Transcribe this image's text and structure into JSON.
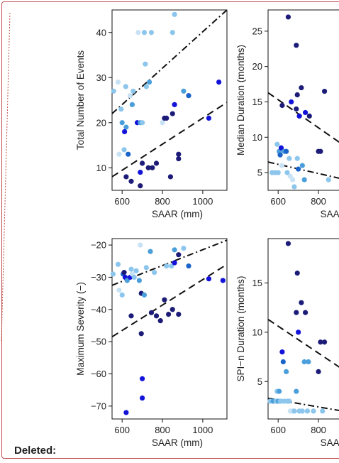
{
  "annotation": {
    "deleted_label": "Deleted:"
  },
  "colors": {
    "frame": "#c0504d",
    "dot_palette": [
      "#c8e2f5",
      "#8cc6ec",
      "#4a9fdb",
      "#1a63c9",
      "#1212d8",
      "#1c1c78"
    ]
  },
  "chart_data": [
    {
      "id": "total-events",
      "type": "scatter",
      "xlabel": "SAAR (mm)",
      "ylabel": "Total Number of Events",
      "xlim": [
        550,
        1120
      ],
      "ylim": [
        5,
        45
      ],
      "xticks": [
        600,
        800,
        1000
      ],
      "yticks": [
        10,
        20,
        30,
        40
      ],
      "grid": false,
      "legend": "none",
      "points": [
        {
          "x": 558,
          "y": 27,
          "c": 1
        },
        {
          "x": 580,
          "y": 29,
          "c": 0
        },
        {
          "x": 595,
          "y": 23,
          "c": 1
        },
        {
          "x": 585,
          "y": 13,
          "c": 0
        },
        {
          "x": 610,
          "y": 14,
          "c": 1
        },
        {
          "x": 600,
          "y": 20,
          "c": 2
        },
        {
          "x": 620,
          "y": 19,
          "c": 2
        },
        {
          "x": 612,
          "y": 18,
          "c": 4
        },
        {
          "x": 618,
          "y": 28,
          "c": 1
        },
        {
          "x": 640,
          "y": 26,
          "c": 0
        },
        {
          "x": 630,
          "y": 13,
          "c": 3
        },
        {
          "x": 620,
          "y": 8,
          "c": 5
        },
        {
          "x": 655,
          "y": 27,
          "c": 1
        },
        {
          "x": 650,
          "y": 24,
          "c": 2
        },
        {
          "x": 645,
          "y": 7,
          "c": 5
        },
        {
          "x": 680,
          "y": 40,
          "c": 0
        },
        {
          "x": 675,
          "y": 20,
          "c": 4
        },
        {
          "x": 690,
          "y": 20,
          "c": 2
        },
        {
          "x": 700,
          "y": 20,
          "c": 1
        },
        {
          "x": 690,
          "y": 9,
          "c": 4
        },
        {
          "x": 700,
          "y": 11,
          "c": 5
        },
        {
          "x": 690,
          "y": 6,
          "c": 5
        },
        {
          "x": 710,
          "y": 40,
          "c": 1
        },
        {
          "x": 715,
          "y": 33,
          "c": 1
        },
        {
          "x": 720,
          "y": 28,
          "c": 1
        },
        {
          "x": 735,
          "y": 29,
          "c": 2
        },
        {
          "x": 745,
          "y": 40,
          "c": 1
        },
        {
          "x": 730,
          "y": 10,
          "c": 5
        },
        {
          "x": 750,
          "y": 10,
          "c": 5
        },
        {
          "x": 770,
          "y": 11,
          "c": 5
        },
        {
          "x": 800,
          "y": 20,
          "c": 0
        },
        {
          "x": 810,
          "y": 21,
          "c": 5
        },
        {
          "x": 820,
          "y": 21,
          "c": 5
        },
        {
          "x": 850,
          "y": 40,
          "c": 1
        },
        {
          "x": 860,
          "y": 44,
          "c": 1
        },
        {
          "x": 850,
          "y": 22,
          "c": 5
        },
        {
          "x": 860,
          "y": 24,
          "c": 4
        },
        {
          "x": 840,
          "y": 8,
          "c": 5
        },
        {
          "x": 880,
          "y": 12,
          "c": 5
        },
        {
          "x": 880,
          "y": 13,
          "c": 5
        },
        {
          "x": 905,
          "y": 27,
          "c": 2
        },
        {
          "x": 930,
          "y": 26,
          "c": 3
        },
        {
          "x": 1030,
          "y": 21,
          "c": 4
        },
        {
          "x": 1080,
          "y": 29,
          "c": 4
        }
      ],
      "lines": [
        {
          "style": "dashdot",
          "x1": 550,
          "y1": 22,
          "x2": 1120,
          "y2": 45
        },
        {
          "style": "dash",
          "x1": 550,
          "y1": 8,
          "x2": 1120,
          "y2": 24.5
        }
      ]
    },
    {
      "id": "median-duration",
      "type": "scatter",
      "xlabel": "SAAR",
      "ylabel": "Median Duration (months)",
      "xlim": [
        550,
        1120
      ],
      "ylim": [
        2.5,
        28
      ],
      "xticks": [
        600,
        800
      ],
      "yticks": [
        5,
        10,
        15,
        20,
        25
      ],
      "grid": false,
      "legend": "none",
      "points": [
        {
          "x": 570,
          "y": 5,
          "c": 1
        },
        {
          "x": 585,
          "y": 5,
          "c": 1
        },
        {
          "x": 595,
          "y": 9,
          "c": 1
        },
        {
          "x": 600,
          "y": 5,
          "c": 1
        },
        {
          "x": 605,
          "y": 8,
          "c": 2
        },
        {
          "x": 610,
          "y": 7.5,
          "c": 3
        },
        {
          "x": 615,
          "y": 8.5,
          "c": 4
        },
        {
          "x": 618,
          "y": 6,
          "c": 0
        },
        {
          "x": 620,
          "y": 14.5,
          "c": 5
        },
        {
          "x": 630,
          "y": 8,
          "c": 2
        },
        {
          "x": 640,
          "y": 8,
          "c": 3
        },
        {
          "x": 645,
          "y": 5,
          "c": 1
        },
        {
          "x": 650,
          "y": 27,
          "c": 5
        },
        {
          "x": 655,
          "y": 7,
          "c": 1
        },
        {
          "x": 660,
          "y": 4.5,
          "c": 0
        },
        {
          "x": 665,
          "y": 15,
          "c": 4
        },
        {
          "x": 672,
          "y": 4,
          "c": 0
        },
        {
          "x": 680,
          "y": 3,
          "c": 1
        },
        {
          "x": 690,
          "y": 14,
          "c": 5
        },
        {
          "x": 690,
          "y": 23,
          "c": 5
        },
        {
          "x": 695,
          "y": 16,
          "c": 5
        },
        {
          "x": 695,
          "y": 7,
          "c": 1
        },
        {
          "x": 700,
          "y": 5.5,
          "c": 3
        },
        {
          "x": 705,
          "y": 13,
          "c": 4
        },
        {
          "x": 715,
          "y": 17,
          "c": 5
        },
        {
          "x": 720,
          "y": 6,
          "c": 2
        },
        {
          "x": 730,
          "y": 4,
          "c": 2
        },
        {
          "x": 735,
          "y": 13.5,
          "c": 4
        },
        {
          "x": 755,
          "y": 13,
          "c": 5
        },
        {
          "x": 800,
          "y": 8,
          "c": 5
        },
        {
          "x": 810,
          "y": 8,
          "c": 5
        },
        {
          "x": 830,
          "y": 16.5,
          "c": 5
        },
        {
          "x": 850,
          "y": 4,
          "c": 1
        }
      ],
      "lines": [
        {
          "style": "dash",
          "x1": 550,
          "y1": 16.3,
          "x2": 1120,
          "y2": 5
        },
        {
          "style": "dashdot",
          "x1": 550,
          "y1": 6.5,
          "x2": 1120,
          "y2": 2.8
        }
      ]
    },
    {
      "id": "max-severity",
      "type": "scatter",
      "xlabel": "SAAR (mm)",
      "ylabel": "Maximum Severity (−)",
      "xlim": [
        550,
        1120
      ],
      "ylim": [
        -74,
        -18
      ],
      "xticks": [
        600,
        800,
        1000
      ],
      "yticks": [
        -70,
        -60,
        -50,
        -40,
        -30,
        -20
      ],
      "ytick_labels": [
        "−70",
        "−60",
        "−50",
        "−40",
        "−30",
        "−20"
      ],
      "grid": false,
      "legend": "none",
      "points": [
        {
          "x": 555,
          "y": -29,
          "c": 1
        },
        {
          "x": 580,
          "y": -26,
          "c": 1
        },
        {
          "x": 585,
          "y": -34,
          "c": 0
        },
        {
          "x": 600,
          "y": -35.5,
          "c": 1
        },
        {
          "x": 605,
          "y": -29,
          "c": 3
        },
        {
          "x": 610,
          "y": -28.5,
          "c": 5
        },
        {
          "x": 615,
          "y": -30,
          "c": 4
        },
        {
          "x": 620,
          "y": -72,
          "c": 4
        },
        {
          "x": 625,
          "y": -31,
          "c": 2
        },
        {
          "x": 640,
          "y": -30,
          "c": 4
        },
        {
          "x": 645,
          "y": -27.5,
          "c": 1
        },
        {
          "x": 645,
          "y": -42,
          "c": 5
        },
        {
          "x": 650,
          "y": -29,
          "c": 0
        },
        {
          "x": 660,
          "y": -30,
          "c": 1
        },
        {
          "x": 670,
          "y": -28,
          "c": 1
        },
        {
          "x": 685,
          "y": -31,
          "c": 2
        },
        {
          "x": 690,
          "y": -20,
          "c": 0
        },
        {
          "x": 695,
          "y": -35,
          "c": 5
        },
        {
          "x": 695,
          "y": -47.5,
          "c": 5
        },
        {
          "x": 700,
          "y": -61.5,
          "c": 4
        },
        {
          "x": 700,
          "y": -67.5,
          "c": 4
        },
        {
          "x": 710,
          "y": -35.5,
          "c": 2
        },
        {
          "x": 720,
          "y": -27,
          "c": 1
        },
        {
          "x": 740,
          "y": -22,
          "c": 2
        },
        {
          "x": 745,
          "y": -41,
          "c": 5
        },
        {
          "x": 760,
          "y": -28.5,
          "c": 1
        },
        {
          "x": 770,
          "y": -42,
          "c": 5
        },
        {
          "x": 790,
          "y": -43.5,
          "c": 5
        },
        {
          "x": 810,
          "y": -37,
          "c": 5
        },
        {
          "x": 820,
          "y": -26.5,
          "c": 1
        },
        {
          "x": 830,
          "y": -41.5,
          "c": 5
        },
        {
          "x": 845,
          "y": -26.5,
          "c": 1
        },
        {
          "x": 850,
          "y": -40,
          "c": 5
        },
        {
          "x": 860,
          "y": -25.5,
          "c": 4
        },
        {
          "x": 860,
          "y": -21.5,
          "c": 2
        },
        {
          "x": 880,
          "y": -41.5,
          "c": 5
        },
        {
          "x": 880,
          "y": -23,
          "c": 5
        },
        {
          "x": 905,
          "y": -21,
          "c": 1
        },
        {
          "x": 930,
          "y": -26.5,
          "c": 3
        },
        {
          "x": 1030,
          "y": -30.5,
          "c": 4
        },
        {
          "x": 1100,
          "y": -31,
          "c": 4
        }
      ],
      "lines": [
        {
          "style": "dashdot",
          "x1": 550,
          "y1": -32.5,
          "x2": 1120,
          "y2": -18.5
        },
        {
          "style": "dash",
          "x1": 550,
          "y1": -48.5,
          "x2": 1120,
          "y2": -26
        }
      ]
    },
    {
      "id": "spi-duration",
      "type": "scatter",
      "xlabel": "SAAR",
      "ylabel": "SPI−n Duration (months)",
      "xlim": [
        550,
        1120
      ],
      "ylim": [
        1.2,
        19.5
      ],
      "xticks": [
        600,
        800
      ],
      "yticks": [
        5,
        10,
        15
      ],
      "grid": false,
      "legend": "none",
      "points": [
        {
          "x": 560,
          "y": 3,
          "c": 1
        },
        {
          "x": 575,
          "y": 3,
          "c": 2
        },
        {
          "x": 590,
          "y": 3,
          "c": 1
        },
        {
          "x": 595,
          "y": 4,
          "c": 1
        },
        {
          "x": 600,
          "y": 3,
          "c": 2
        },
        {
          "x": 605,
          "y": 4,
          "c": 2
        },
        {
          "x": 610,
          "y": 3,
          "c": 1
        },
        {
          "x": 615,
          "y": 3,
          "c": 1
        },
        {
          "x": 620,
          "y": 8,
          "c": 4
        },
        {
          "x": 625,
          "y": 7,
          "c": 3
        },
        {
          "x": 630,
          "y": 3,
          "c": 1
        },
        {
          "x": 640,
          "y": 6,
          "c": 2
        },
        {
          "x": 645,
          "y": 3,
          "c": 1
        },
        {
          "x": 650,
          "y": 19,
          "c": 5
        },
        {
          "x": 655,
          "y": 3,
          "c": 1
        },
        {
          "x": 660,
          "y": 2,
          "c": 0
        },
        {
          "x": 670,
          "y": 2,
          "c": 0
        },
        {
          "x": 680,
          "y": 2,
          "c": 1
        },
        {
          "x": 690,
          "y": 4,
          "c": 2
        },
        {
          "x": 690,
          "y": 12,
          "c": 5
        },
        {
          "x": 695,
          "y": 16,
          "c": 5
        },
        {
          "x": 700,
          "y": 10,
          "c": 4
        },
        {
          "x": 705,
          "y": 2,
          "c": 1
        },
        {
          "x": 715,
          "y": 13,
          "c": 5
        },
        {
          "x": 720,
          "y": 2,
          "c": 1
        },
        {
          "x": 730,
          "y": 7,
          "c": 2
        },
        {
          "x": 735,
          "y": 12,
          "c": 5
        },
        {
          "x": 745,
          "y": 2,
          "c": 1
        },
        {
          "x": 750,
          "y": 7,
          "c": 2
        },
        {
          "x": 775,
          "y": 2,
          "c": 1
        },
        {
          "x": 800,
          "y": 6,
          "c": 5
        },
        {
          "x": 810,
          "y": 9,
          "c": 5
        },
        {
          "x": 820,
          "y": 2,
          "c": 1
        },
        {
          "x": 830,
          "y": 9,
          "c": 5
        }
      ],
      "lines": [
        {
          "style": "dash",
          "x1": 550,
          "y1": 11.3,
          "x2": 1120,
          "y2": 3.5
        },
        {
          "style": "dashdot",
          "x1": 550,
          "y1": 3.3,
          "x2": 1120,
          "y2": 1.3
        }
      ]
    }
  ]
}
